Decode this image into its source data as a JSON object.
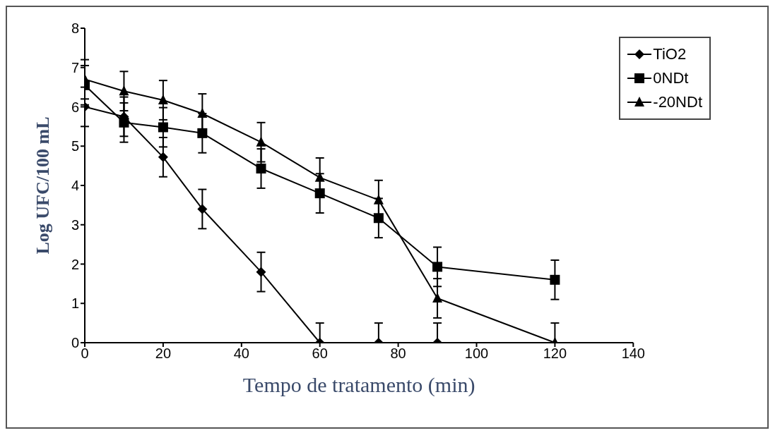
{
  "chart_data": {
    "type": "line",
    "xlabel": "Tempo de tratamento (min)",
    "ylabel": "Log UFC/100 mL",
    "xlim": [
      0,
      140
    ],
    "xticks": [
      0,
      20,
      40,
      60,
      80,
      100,
      120,
      140
    ],
    "ylim": [
      0,
      8
    ],
    "yticks": [
      0,
      1,
      2,
      3,
      4,
      5,
      6,
      7,
      8
    ],
    "legend": "top right",
    "grid": false,
    "line_style": "solid",
    "series": [
      {
        "name": "TiO2",
        "color": "#000000",
        "marker": "diamond",
        "x": [
          0,
          10,
          20,
          30,
          45,
          60,
          75,
          90
        ],
        "values": [
          6.0,
          5.75,
          4.72,
          3.4,
          1.8,
          0,
          0,
          0
        ],
        "errors": [
          0.5,
          0.5,
          0.5,
          0.5,
          0.5,
          [
            0,
            0.5
          ],
          [
            0,
            0.5
          ],
          [
            0,
            0.5
          ]
        ]
      },
      {
        "name": "0NDt",
        "color": "#000000",
        "marker": "square",
        "x": [
          0,
          10,
          20,
          30,
          45,
          60,
          75,
          90,
          120
        ],
        "values": [
          6.55,
          5.6,
          5.48,
          5.33,
          4.43,
          3.8,
          3.17,
          1.93,
          1.6
        ],
        "errors": [
          0.5,
          0.5,
          0.5,
          0.5,
          0.5,
          0.5,
          0.5,
          0.5,
          0.5
        ]
      },
      {
        "name": "-20NDt",
        "color": "#000000",
        "marker": "triangle",
        "x": [
          0,
          10,
          20,
          30,
          45,
          60,
          75,
          90,
          120
        ],
        "values": [
          6.7,
          6.4,
          6.17,
          5.83,
          5.1,
          4.2,
          3.63,
          1.13,
          0
        ],
        "errors": [
          0.5,
          0.5,
          0.5,
          0.5,
          0.5,
          0.5,
          0.5,
          0.5,
          [
            0,
            0.5
          ]
        ]
      }
    ]
  }
}
